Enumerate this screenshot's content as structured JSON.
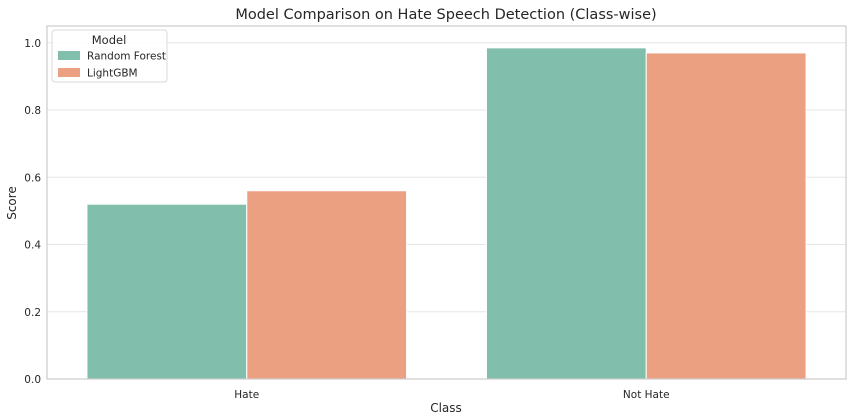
{
  "chart_data": {
    "type": "bar",
    "title": "Model Comparison on Hate Speech Detection (Class-wise)",
    "xlabel": "Class",
    "ylabel": "Score",
    "categories": [
      "Hate",
      "Not Hate"
    ],
    "series": [
      {
        "name": "Random Forest",
        "values": [
          0.52,
          0.985
        ],
        "color": "#81bfac"
      },
      {
        "name": "LightGBM",
        "values": [
          0.56,
          0.97
        ],
        "color": "#eca082"
      }
    ],
    "ylim": [
      0,
      1.05
    ],
    "yticks": [
      "0.0",
      "0.2",
      "0.4",
      "0.6",
      "0.8",
      "1.0"
    ],
    "grid": true,
    "legend": {
      "title": "Model",
      "placement": "top-left"
    },
    "colors": {
      "grid": "#e6e6e6",
      "spine": "#cccccc",
      "text": "#262626"
    }
  }
}
